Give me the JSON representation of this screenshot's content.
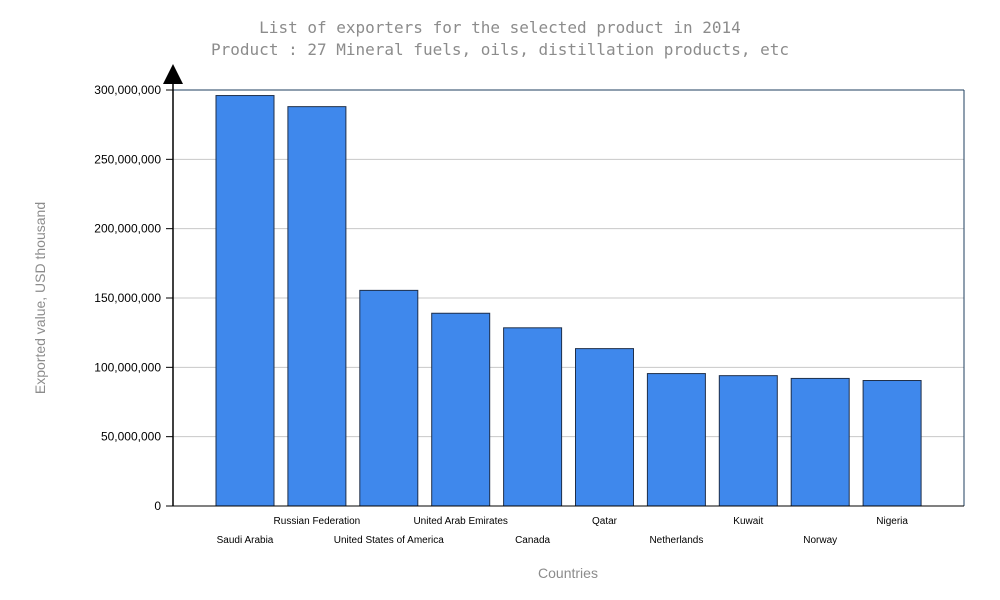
{
  "chart_data": {
    "type": "bar",
    "title": "List of exporters for the selected product in 2014",
    "subtitle": "Product : 27 Mineral fuels, oils, distillation products, etc",
    "xlabel": "Countries",
    "ylabel": "Exported value, USD thousand",
    "categories": [
      "Saudi Arabia",
      "Russian Federation",
      "United States of America",
      "United Arab Emirates",
      "Canada",
      "Qatar",
      "Netherlands",
      "Kuwait",
      "Norway",
      "Nigeria"
    ],
    "values": [
      296000000,
      288000000,
      155500000,
      139000000,
      128500000,
      113500000,
      95500000,
      94000000,
      92000000,
      90500000
    ],
    "ylim": [
      0,
      300000000
    ],
    "yticks": [
      0,
      50000000,
      100000000,
      150000000,
      200000000,
      250000000,
      300000000
    ],
    "ytick_labels": [
      "0",
      "50,000,000",
      "100,000,000",
      "150,000,000",
      "200,000,000",
      "250,000,000",
      "300,000,000"
    ],
    "grid": "horizontal",
    "bar_color": "#3f88ec",
    "bar_edge_color": "#1f2f4a",
    "gridline_color": "#c8c8c8",
    "frame_color": "#1f3f5f"
  }
}
